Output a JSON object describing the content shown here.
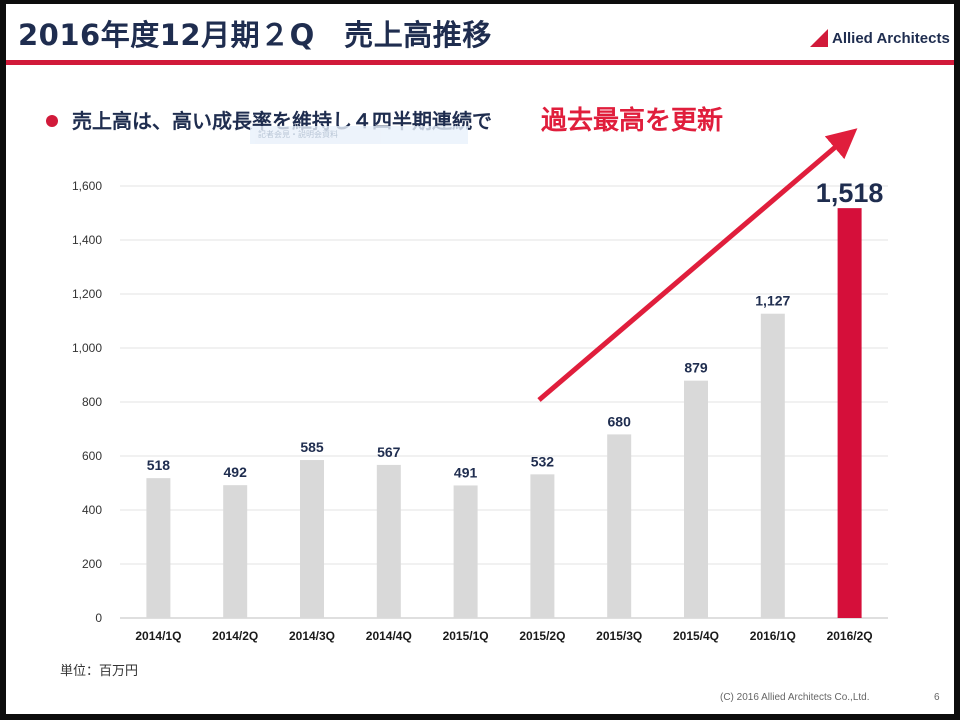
{
  "header": {
    "title": "2016年度12月期２Q　売上高推移",
    "logo_text": "Allied Architects"
  },
  "headline": {
    "text": "売上高は、高い成長率を維持し４四半期連続で",
    "accent": "過去最高を更新",
    "faint_text": "記者会見・説明会資料"
  },
  "footer": {
    "unit": "単位：百万円",
    "copyright": "(C) 2016 Allied Architects Co.,Ltd.",
    "page": "6"
  },
  "colors": {
    "title": "#1f2d4f",
    "accent": "#e01e3c",
    "bar": "#d9d9d9",
    "bar_highlight": "#d50f3a",
    "header_rule": "#d11a3a"
  },
  "chart_data": {
    "type": "bar",
    "categories": [
      "2014/1Q",
      "2014/2Q",
      "2014/3Q",
      "2014/4Q",
      "2015/1Q",
      "2015/2Q",
      "2015/3Q",
      "2015/4Q",
      "2016/1Q",
      "2016/2Q"
    ],
    "values": [
      518,
      492,
      585,
      567,
      491,
      532,
      680,
      879,
      1127,
      1518
    ],
    "value_labels": [
      "518",
      "492",
      "585",
      "567",
      "491",
      "532",
      "680",
      "879",
      "1,127",
      "1,518"
    ],
    "highlight_index": 9,
    "yticks": [
      "0",
      "200",
      "400",
      "600",
      "800",
      "1,000",
      "1,200",
      "1,400",
      "1,600"
    ],
    "ylim": [
      0,
      1600
    ],
    "grid": true,
    "trend_arrow": true
  }
}
